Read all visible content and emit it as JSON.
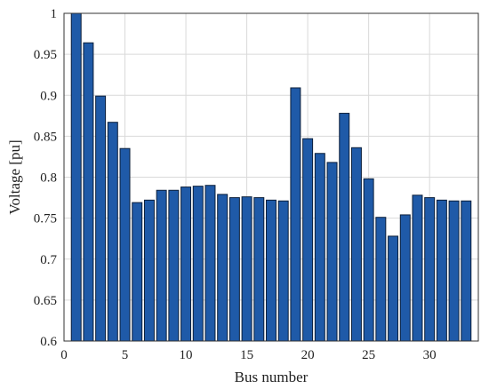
{
  "chart_data": {
    "type": "bar",
    "xlabel": "Bus number",
    "ylabel": "Voltage [pu]",
    "xlim": [
      0,
      34
    ],
    "ylim": [
      0.6,
      1.0
    ],
    "xticks": [
      0,
      5,
      10,
      15,
      20,
      25,
      30
    ],
    "yticks": [
      0.6,
      0.65,
      0.7,
      0.75,
      0.8,
      0.85,
      0.9,
      0.95,
      1.0
    ],
    "ytick_labels": [
      "0.6",
      "0.65",
      "0.7",
      "0.75",
      "0.8",
      "0.85",
      "0.9",
      "0.95",
      "1"
    ],
    "grid": true,
    "categories": [
      1,
      2,
      3,
      4,
      5,
      6,
      7,
      8,
      9,
      10,
      11,
      12,
      13,
      14,
      15,
      16,
      17,
      18,
      19,
      20,
      21,
      22,
      23,
      24,
      25,
      26,
      27,
      28,
      29,
      30,
      31,
      32,
      33
    ],
    "values": [
      1.0,
      0.964,
      0.899,
      0.867,
      0.835,
      0.769,
      0.772,
      0.784,
      0.784,
      0.788,
      0.789,
      0.79,
      0.779,
      0.775,
      0.776,
      0.775,
      0.772,
      0.771,
      0.909,
      0.847,
      0.829,
      0.818,
      0.878,
      0.836,
      0.798,
      0.751,
      0.728,
      0.754,
      0.778,
      0.775,
      0.772,
      0.771,
      0.771
    ],
    "colors": {
      "bar": "#1f5aa8",
      "edge": "#0c1f3a",
      "grid": "#d9d9d9"
    }
  }
}
